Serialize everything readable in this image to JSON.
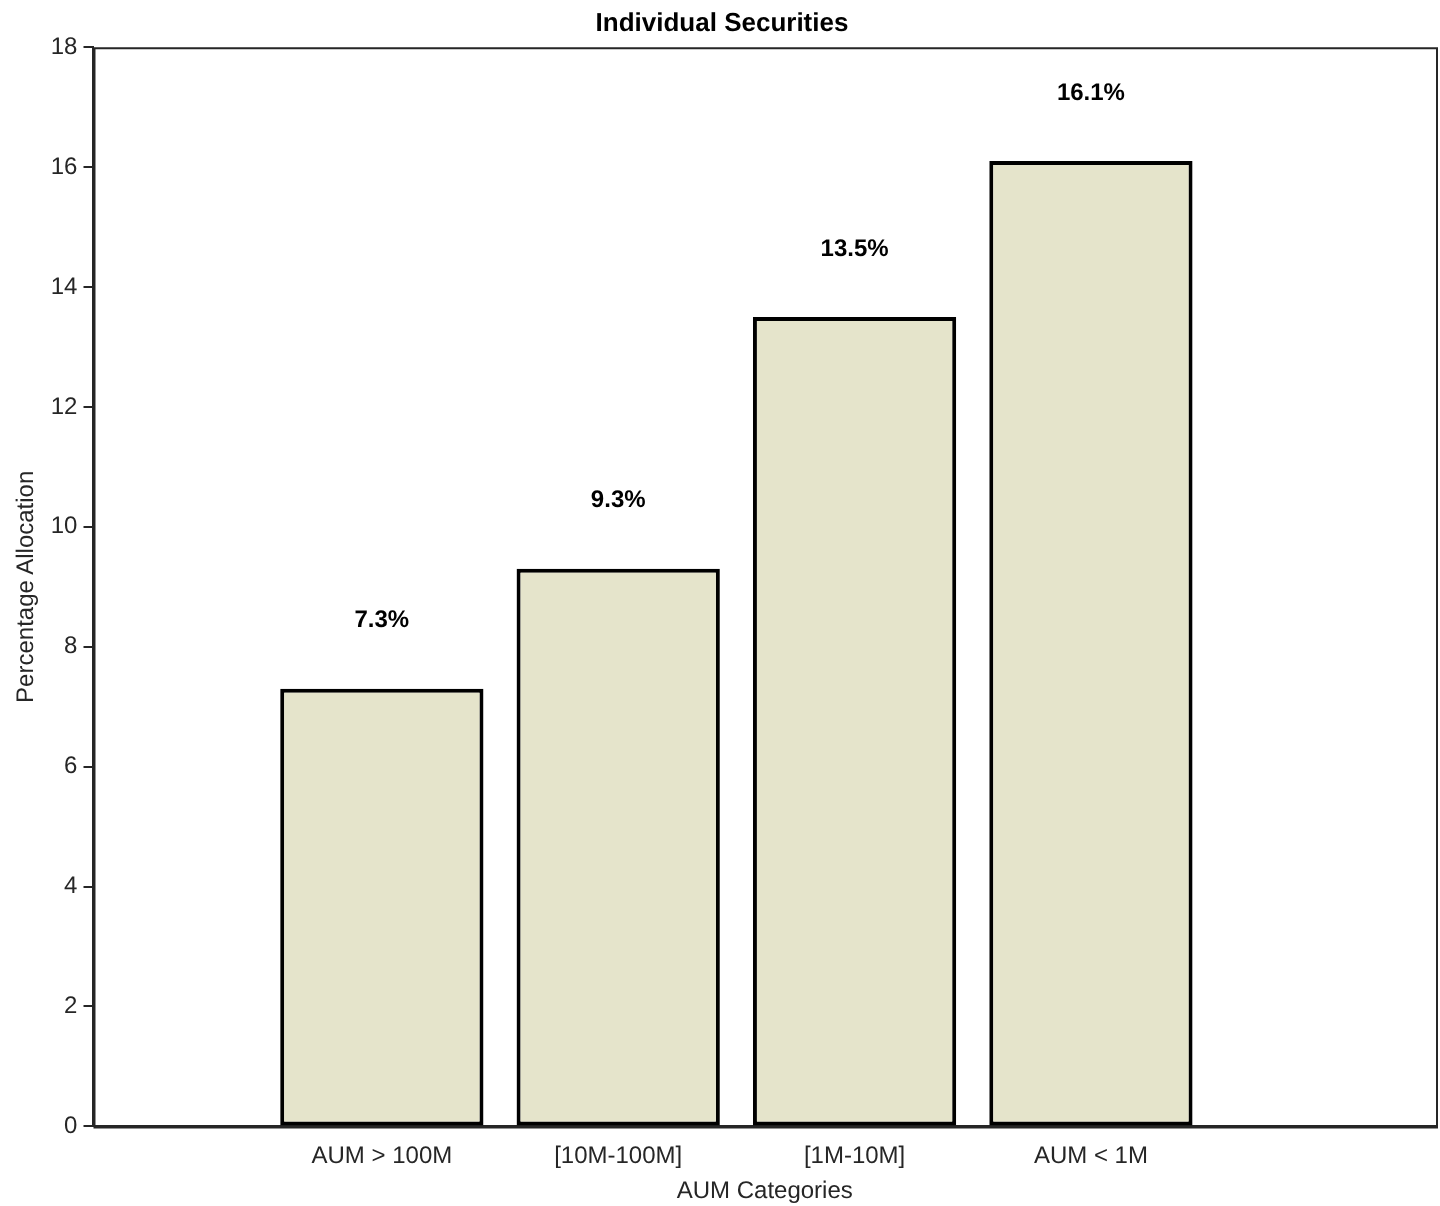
{
  "chart_data": {
    "type": "bar",
    "title": "Individual Securities",
    "xlabel": "AUM Categories",
    "ylabel": "Percentage Allocation",
    "categories": [
      "AUM > 100M",
      "[10M-100M]",
      "[1M-10M]",
      "AUM < 1M"
    ],
    "values": [
      7.3,
      9.3,
      13.5,
      16.1
    ],
    "color": "#e5e4cb",
    "value_labels": [
      "7.3%",
      "9.3%",
      "13.5%",
      "16.1%"
    ],
    "ylim": [
      0,
      18
    ],
    "yticks": [
      0,
      2,
      4,
      6,
      8,
      10,
      12,
      14,
      16,
      18
    ],
    "grid": false,
    "legend": false
  }
}
